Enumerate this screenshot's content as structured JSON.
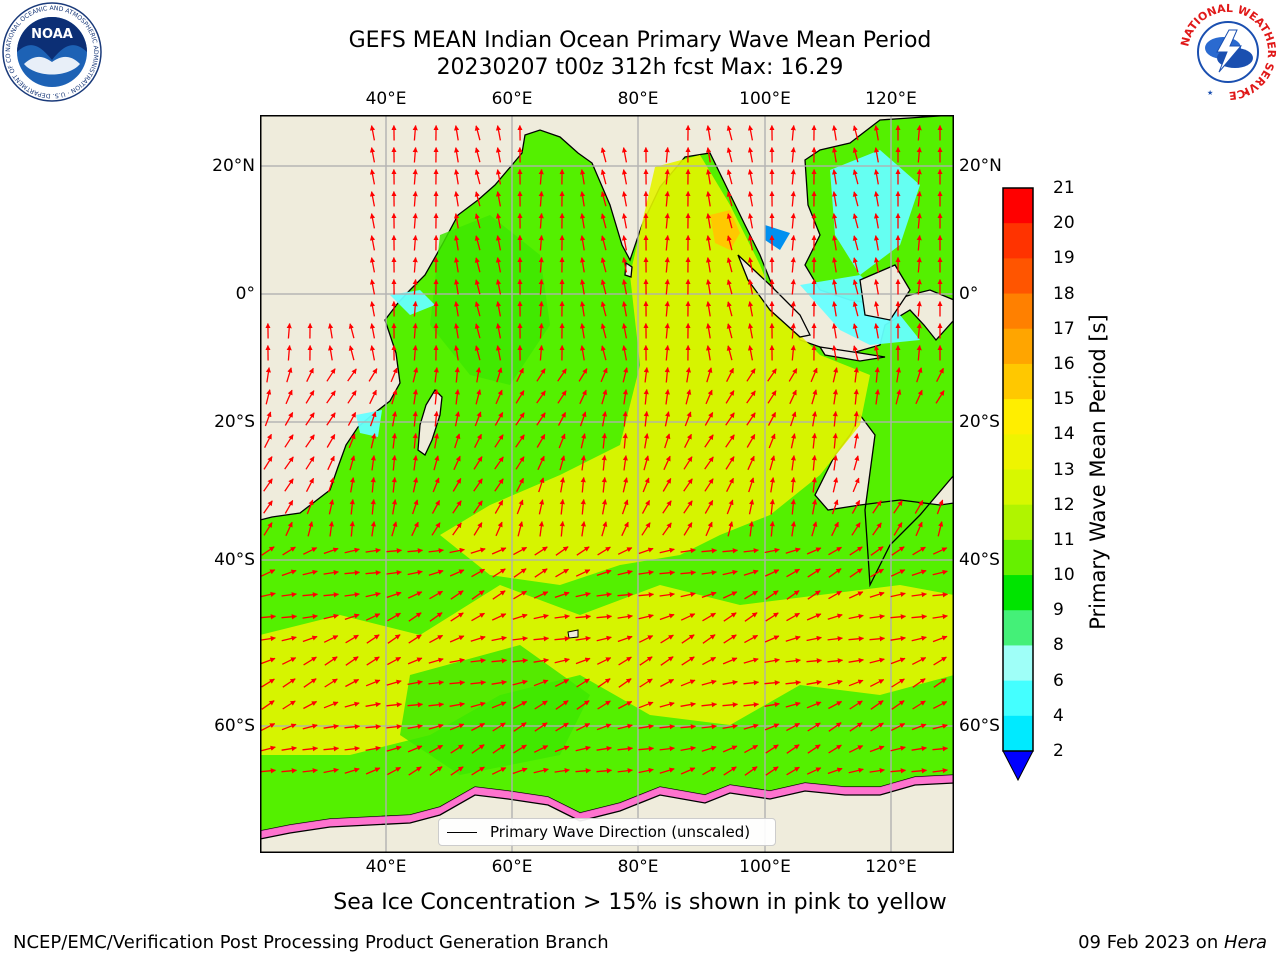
{
  "title": {
    "line1": "GEFS MEAN Indian Ocean Primary Wave Mean Period",
    "line2": "20230207 t00z 312h fcst   Max: 16.29"
  },
  "map": {
    "lon_ticks": [
      "40°E",
      "60°E",
      "80°E",
      "100°E",
      "120°E"
    ],
    "lat_ticks": [
      "20°N",
      "0°",
      "20°S",
      "40°S",
      "60°S"
    ],
    "lon_range": [
      20,
      130
    ],
    "lat_range": [
      -74,
      28
    ],
    "land_color": "#efecdc",
    "arrow_color": "#ff0000"
  },
  "colorbar": {
    "title": "Primary Wave Mean Period [s]",
    "labels": [
      "21",
      "20",
      "19",
      "18",
      "17",
      "16",
      "15",
      "14",
      "13",
      "12",
      "11",
      "10",
      "9",
      "8",
      "6",
      "4",
      "2"
    ],
    "colors": [
      "#ff0000",
      "#ff3300",
      "#ff5500",
      "#ff8000",
      "#ffa500",
      "#ffc800",
      "#ffee00",
      "#eef400",
      "#d7f800",
      "#b0f400",
      "#66f000",
      "#00e400",
      "#44f078",
      "#9ffff8",
      "#44ffff",
      "#00eaff",
      "#0090f0"
    ],
    "extend_color": "#0000ff"
  },
  "legend": {
    "label": "Primary Wave Direction (unscaled)"
  },
  "footnote": "Sea Ice Concentration > 15% is shown in pink to yellow",
  "footer": {
    "left": "NCEP/EMC/Verification Post Processing Product Generation Branch",
    "right_prefix": "09 Feb 2023 on ",
    "right_host": "Hera"
  },
  "logos": {
    "noaa_text": "NOAA",
    "noaa_ring": "NATIONAL OCEANIC AND ATMOSPHERIC ADMINISTRATION · U.S. DEPARTMENT OF COMMERCE ·",
    "nws_ring": "NATIONAL WEATHER SERVICE"
  }
}
